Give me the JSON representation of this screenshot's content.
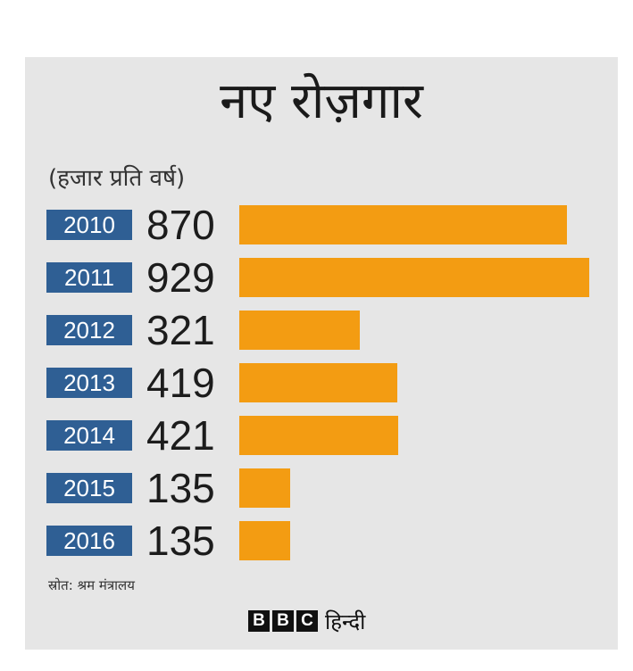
{
  "chart_data": {
    "type": "bar",
    "orientation": "horizontal",
    "title": "नए रोज़गार",
    "subtitle": "(हजार प्रति वर्ष)",
    "categories": [
      "2010",
      "2011",
      "2012",
      "2013",
      "2014",
      "2015",
      "2016"
    ],
    "values": [
      870,
      929,
      321,
      419,
      421,
      135,
      135
    ],
    "data_labels": [
      "870",
      "929",
      "321",
      "419",
      "421",
      "135",
      "135"
    ],
    "xlim": [
      0,
      929
    ],
    "grid": false,
    "legend": "none",
    "source": "स्रोत: श्रम मंत्रालय"
  },
  "branding": {
    "logo_letters": [
      "B",
      "B",
      "C"
    ],
    "logo_word": "हिन्दी"
  },
  "colors": {
    "bar": "#f39c12",
    "year_badge": "#2f5f94",
    "background": "#e6e6e6"
  }
}
